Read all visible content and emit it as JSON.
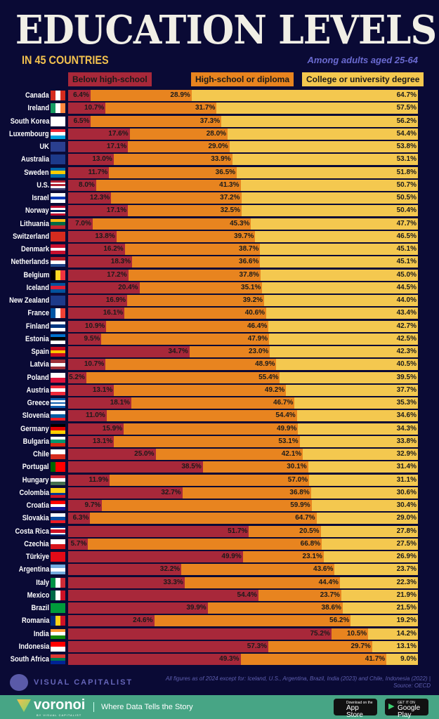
{
  "header": {
    "title": "EDUCATION LEVELS",
    "subtitle": "IN 45 COUNTRIES",
    "note": "Among adults aged 25-64"
  },
  "colors": {
    "background": "#0a0a35",
    "below": "#a8283a",
    "highschool": "#e8841f",
    "college": "#f4c84f",
    "footer_band": "#47a585"
  },
  "chart_data": {
    "type": "bar",
    "orientation": "horizontal",
    "stacked": true,
    "xlim": [
      0,
      100
    ],
    "legend": "top",
    "series": [
      {
        "name": "Below high-school",
        "color": "#a8283a"
      },
      {
        "name": "High-school or diploma",
        "color": "#e8841f"
      },
      {
        "name": "College or university degree",
        "color": "#f4c84f"
      }
    ],
    "rows": [
      [
        "Canada",
        6.4,
        28.9,
        64.7
      ],
      [
        "Ireland",
        10.7,
        31.7,
        57.5
      ],
      [
        "South Korea",
        6.5,
        37.3,
        56.2
      ],
      [
        "Luxembourg",
        17.6,
        28.0,
        54.4
      ],
      [
        "UK",
        17.1,
        29.0,
        53.8
      ],
      [
        "Australia",
        13.0,
        33.9,
        53.1
      ],
      [
        "Sweden",
        11.7,
        36.5,
        51.8
      ],
      [
        "U.S.",
        8.0,
        41.3,
        50.7
      ],
      [
        "Israel",
        12.3,
        37.2,
        50.5
      ],
      [
        "Norway",
        17.1,
        32.5,
        50.4
      ],
      [
        "Lithuania",
        7.0,
        45.3,
        47.7
      ],
      [
        "Switzerland",
        13.8,
        39.7,
        46.5
      ],
      [
        "Denmark",
        16.2,
        38.7,
        45.1
      ],
      [
        "Netherlands",
        18.3,
        36.6,
        45.1
      ],
      [
        "Belgium",
        17.2,
        37.8,
        45.0
      ],
      [
        "Iceland",
        20.4,
        35.1,
        44.5
      ],
      [
        "New Zealand",
        16.9,
        39.2,
        44.0
      ],
      [
        "France",
        16.1,
        40.6,
        43.4
      ],
      [
        "Finland",
        10.9,
        46.4,
        42.7
      ],
      [
        "Estonia",
        9.5,
        47.9,
        42.5
      ],
      [
        "Spain",
        34.7,
        23.0,
        42.3
      ],
      [
        "Latvia",
        10.7,
        48.9,
        40.5
      ],
      [
        "Poland",
        5.2,
        55.4,
        39.5
      ],
      [
        "Austria",
        13.1,
        49.2,
        37.7
      ],
      [
        "Greece",
        18.1,
        46.7,
        35.3
      ],
      [
        "Slovenia",
        11.0,
        54.4,
        34.6
      ],
      [
        "Germany",
        15.9,
        49.9,
        34.3
      ],
      [
        "Bulgaria",
        13.1,
        53.1,
        33.8
      ],
      [
        "Chile",
        25.0,
        42.1,
        32.9
      ],
      [
        "Portugal",
        38.5,
        30.1,
        31.4
      ],
      [
        "Hungary",
        11.9,
        57.0,
        31.1
      ],
      [
        "Colombia",
        32.7,
        36.8,
        30.6
      ],
      [
        "Croatia",
        9.7,
        59.9,
        30.4
      ],
      [
        "Slovakia",
        6.3,
        64.7,
        29.0
      ],
      [
        "Costa Rica",
        51.7,
        20.5,
        27.8
      ],
      [
        "Czechia",
        5.7,
        66.8,
        27.5
      ],
      [
        "Türkiye",
        49.9,
        23.1,
        26.9
      ],
      [
        "Argentina",
        32.2,
        43.6,
        23.7
      ],
      [
        "Italy",
        33.3,
        44.4,
        22.3
      ],
      [
        "Mexico",
        54.4,
        23.7,
        21.9
      ],
      [
        "Brazil",
        39.9,
        38.6,
        21.5
      ],
      [
        "Romania",
        24.6,
        56.2,
        19.2
      ],
      [
        "India",
        75.2,
        10.5,
        14.2
      ],
      [
        "Indonesia",
        57.3,
        29.7,
        13.1
      ],
      [
        "South Africa",
        49.3,
        41.7,
        9.0
      ]
    ]
  },
  "flags": [
    [
      "v",
      "#d52b1e",
      "#fff",
      "#d52b1e"
    ],
    [
      "v",
      "#169b62",
      "#fff",
      "#ff883e"
    ],
    [
      "v",
      "#fff"
    ],
    [
      "h",
      "#ed2939",
      "#fff",
      "#00a1de"
    ],
    [
      "v",
      "#2a3f8f"
    ],
    [
      "v",
      "#1d3a8a"
    ],
    [
      "h",
      "#006aa7",
      "#fecc00",
      "#006aa7"
    ],
    [
      "h",
      "#b22234",
      "#fff",
      "#b22234",
      "#fff",
      "#3c3b6e"
    ],
    [
      "h",
      "#fff",
      "#0038b8",
      "#fff"
    ],
    [
      "h",
      "#ba0c2f",
      "#fff",
      "#00205b",
      "#fff",
      "#ba0c2f"
    ],
    [
      "h",
      "#fdb913",
      "#006a44",
      "#c1272d"
    ],
    [
      "v",
      "#d52b1e"
    ],
    [
      "h",
      "#c8102e",
      "#fff",
      "#c8102e"
    ],
    [
      "h",
      "#ae1c28",
      "#fff",
      "#21468b"
    ],
    [
      "v",
      "#000",
      "#fdda24",
      "#ef3340"
    ],
    [
      "h",
      "#02529c",
      "#dc1e35",
      "#02529c"
    ],
    [
      "v",
      "#1d3a8a"
    ],
    [
      "v",
      "#0055a4",
      "#fff",
      "#ef4135"
    ],
    [
      "h",
      "#fff",
      "#003580",
      "#fff"
    ],
    [
      "h",
      "#0072ce",
      "#000",
      "#fff"
    ],
    [
      "h",
      "#c60b1e",
      "#ffc400",
      "#c60b1e"
    ],
    [
      "h",
      "#9e3039",
      "#fff",
      "#9e3039"
    ],
    [
      "h",
      "#fff",
      "#dc143c"
    ],
    [
      "h",
      "#ed2939",
      "#fff",
      "#ed2939"
    ],
    [
      "h",
      "#0d5eaf",
      "#fff",
      "#0d5eaf",
      "#fff",
      "#0d5eaf"
    ],
    [
      "h",
      "#fff",
      "#005da4",
      "#ed1c24"
    ],
    [
      "h",
      "#000",
      "#dd0000",
      "#ffce00"
    ],
    [
      "h",
      "#fff",
      "#00966e",
      "#d62612"
    ],
    [
      "h",
      "#fff",
      "#d52b1e"
    ],
    [
      "v",
      "#006600",
      "#ff0000",
      "#ff0000"
    ],
    [
      "h",
      "#ce2939",
      "#fff",
      "#477050"
    ],
    [
      "h",
      "#fcd116",
      "#fcd116",
      "#003893",
      "#ce1126"
    ],
    [
      "h",
      "#ff0000",
      "#fff",
      "#171796"
    ],
    [
      "h",
      "#fff",
      "#0b4ea2",
      "#ee1c25"
    ],
    [
      "h",
      "#002b7f",
      "#fff",
      "#ce1126",
      "#ce1126",
      "#fff",
      "#002b7f"
    ],
    [
      "h",
      "#fff",
      "#d7141a"
    ],
    [
      "v",
      "#e30a17"
    ],
    [
      "h",
      "#74acdf",
      "#fff",
      "#74acdf"
    ],
    [
      "v",
      "#009246",
      "#fff",
      "#ce2b37"
    ],
    [
      "v",
      "#006847",
      "#fff",
      "#ce1126"
    ],
    [
      "v",
      "#009c3b"
    ],
    [
      "v",
      "#002b7f",
      "#fcd116",
      "#ce1126"
    ],
    [
      "h",
      "#ff9933",
      "#fff",
      "#138808"
    ],
    [
      "h",
      "#ff0000",
      "#fff"
    ],
    [
      "h",
      "#de3831",
      "#007a4d",
      "#002395"
    ]
  ],
  "footer": {
    "brand": "VISUAL CAPITALIST",
    "source": "All figures as of 2024 except for: Iceland, U.S., Argentina, Brazil, India (2023) and Chile, Indonesia (2022) | Source: OECD"
  },
  "band": {
    "logo": "voronoi",
    "logo_sub": "BY VISUAL CAPITALIST",
    "tagline": "Where Data Tells the Story",
    "app_store_small": "Download on the",
    "app_store": "App Store",
    "google_small": "GET IT ON",
    "google": "Google Play"
  }
}
